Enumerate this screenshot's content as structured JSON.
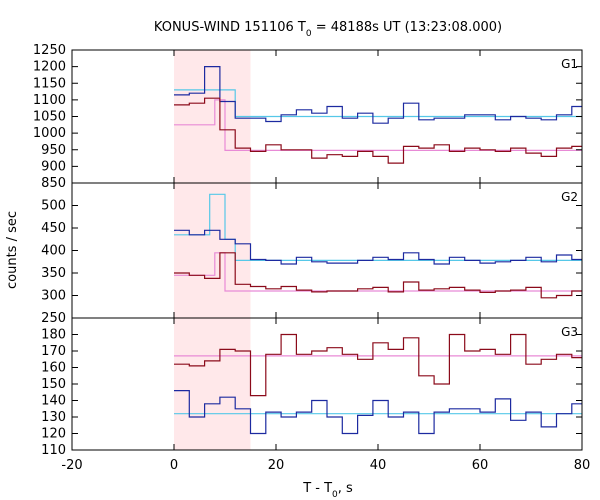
{
  "chart_data": {
    "type": "line",
    "title": "KONUS-WIND 151106 T",
    "title_sub": "0",
    "title_rest": " = 48188s UT (13:23:08.000)",
    "xlabel_main": "T - T",
    "xlabel_sub": "0",
    "xlabel_rest": ", s",
    "ylabel": "counts / sec",
    "xlim": [
      -20,
      80
    ],
    "xticks": [
      -20,
      0,
      20,
      40,
      60,
      80
    ],
    "highlight_interval": [
      0,
      15
    ],
    "colors": {
      "red_series": "#8b0a1a",
      "blue_series": "#1c2aa0",
      "red_fit": "#e88ad6",
      "blue_fit": "#56c8e8",
      "highlight": "#ffe8ea"
    },
    "panels": [
      {
        "label": "G1",
        "ylim": [
          850,
          1250
        ],
        "yticks": [
          850,
          900,
          950,
          1000,
          1050,
          1100,
          1150,
          1200,
          1250
        ],
        "edges": [
          0,
          3,
          6,
          9,
          12,
          15,
          18,
          21,
          24,
          27,
          30,
          33,
          36,
          39,
          42,
          45,
          48,
          51,
          54,
          57,
          60,
          63,
          66,
          69,
          72,
          75,
          78,
          80
        ],
        "red": [
          1085,
          1090,
          1105,
          1010,
          955,
          945,
          965,
          950,
          950,
          925,
          935,
          930,
          945,
          930,
          910,
          960,
          955,
          965,
          945,
          955,
          950,
          945,
          955,
          940,
          930,
          955,
          960
        ],
        "blue": [
          1115,
          1120,
          1200,
          1095,
          1045,
          1045,
          1035,
          1055,
          1070,
          1060,
          1080,
          1045,
          1060,
          1030,
          1045,
          1090,
          1040,
          1045,
          1045,
          1055,
          1055,
          1040,
          1050,
          1045,
          1040,
          1055,
          1080
        ],
        "red_fit": [
          [
            0,
            8,
            1025
          ],
          [
            8,
            10,
            1100
          ],
          [
            10,
            80,
            948
          ]
        ],
        "blue_fit": [
          [
            0,
            12,
            1130
          ],
          [
            12,
            80,
            1050
          ]
        ]
      },
      {
        "label": "G2",
        "ylim": [
          250,
          550
        ],
        "yticks": [
          250,
          300,
          350,
          400,
          450,
          500
        ],
        "edges": [
          0,
          3,
          6,
          9,
          12,
          15,
          18,
          21,
          24,
          27,
          30,
          33,
          36,
          39,
          42,
          45,
          48,
          51,
          54,
          57,
          60,
          63,
          66,
          69,
          72,
          75,
          78,
          80
        ],
        "red": [
          350,
          345,
          338,
          395,
          325,
          320,
          315,
          320,
          312,
          308,
          310,
          310,
          315,
          318,
          308,
          330,
          312,
          315,
          318,
          312,
          307,
          310,
          312,
          318,
          295,
          300,
          310
        ],
        "blue": [
          445,
          435,
          445,
          425,
          415,
          380,
          378,
          370,
          385,
          375,
          372,
          372,
          378,
          385,
          380,
          395,
          380,
          370,
          385,
          378,
          372,
          375,
          378,
          385,
          375,
          390,
          380
        ],
        "red_fit": [
          [
            0,
            8,
            345
          ],
          [
            8,
            10,
            395
          ],
          [
            10,
            80,
            310
          ]
        ],
        "blue_fit": [
          [
            0,
            7,
            435
          ],
          [
            7,
            10,
            525
          ],
          [
            10,
            12,
            425
          ],
          [
            12,
            80,
            378
          ]
        ]
      },
      {
        "label": "G3",
        "ylim": [
          110,
          190
        ],
        "yticks": [
          110,
          120,
          130,
          140,
          150,
          160,
          170,
          180
        ],
        "edges": [
          0,
          3,
          6,
          9,
          12,
          15,
          18,
          21,
          24,
          27,
          30,
          33,
          36,
          39,
          42,
          45,
          48,
          51,
          54,
          57,
          60,
          63,
          66,
          69,
          72,
          75,
          78,
          80
        ],
        "red": [
          162,
          161,
          164,
          171,
          170,
          143,
          168,
          180,
          168,
          170,
          172,
          168,
          165,
          175,
          171,
          178,
          155,
          150,
          180,
          170,
          171,
          168,
          180,
          162,
          165,
          168,
          166
        ],
        "blue": [
          146,
          130,
          138,
          142,
          135,
          120,
          133,
          130,
          133,
          140,
          130,
          120,
          131,
          140,
          130,
          133,
          120,
          133,
          135,
          135,
          133,
          141,
          128,
          133,
          124,
          132,
          138
        ],
        "red_fit": [
          [
            0,
            80,
            167
          ]
        ],
        "blue_fit": [
          [
            0,
            80,
            132
          ]
        ]
      }
    ]
  }
}
